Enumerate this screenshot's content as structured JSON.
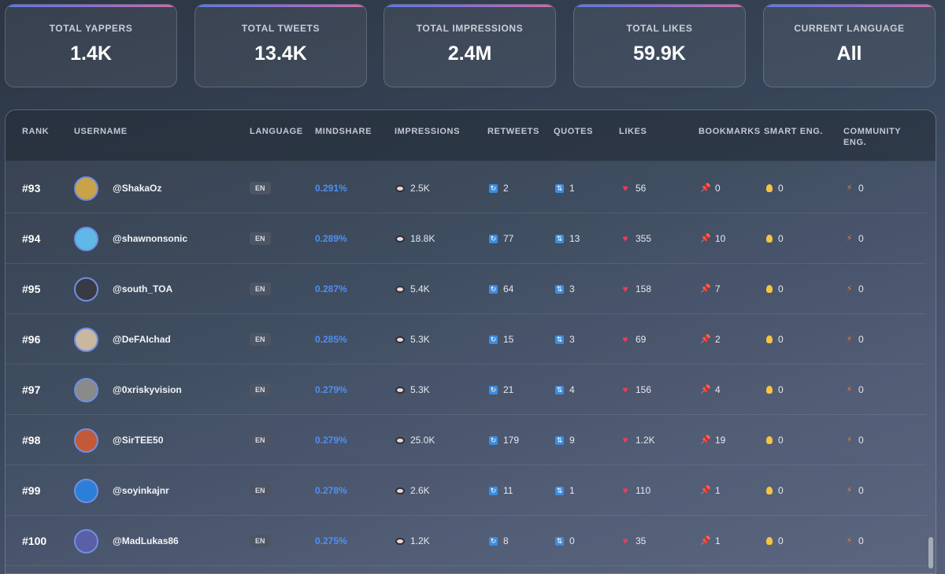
{
  "stats": [
    {
      "label": "TOTAL YAPPERS",
      "value": "1.4K"
    },
    {
      "label": "TOTAL TWEETS",
      "value": "13.4K"
    },
    {
      "label": "TOTAL IMPRESSIONS",
      "value": "2.4M"
    },
    {
      "label": "TOTAL LIKES",
      "value": "59.9K"
    },
    {
      "label": "CURRENT LANGUAGE",
      "value": "All"
    }
  ],
  "table": {
    "headers": {
      "rank": "RANK",
      "username": "USERNAME",
      "language": "LANGUAGE",
      "mindshare": "MINDSHARE",
      "impressions": "IMPRESSIONS",
      "retweets": "RETWEETS",
      "quotes": "QUOTES",
      "likes": "LIKES",
      "bookmarks": "BOOKMARKS",
      "smart_eng": "SMART ENG.",
      "community_eng_1": "COMMUNITY",
      "community_eng_2": "ENG."
    },
    "rows": [
      {
        "rank": "#93",
        "username": "@ShakaOz",
        "language": "EN",
        "mindshare": "0.291%",
        "impressions": "2.5K",
        "retweets": "2",
        "quotes": "1",
        "likes": "56",
        "bookmarks": "0",
        "smart_eng": "0",
        "community_eng": "0",
        "avatar_color": "#c9a24a"
      },
      {
        "rank": "#94",
        "username": "@shawnonsonic",
        "language": "EN",
        "mindshare": "0.289%",
        "impressions": "18.8K",
        "retweets": "77",
        "quotes": "13",
        "likes": "355",
        "bookmarks": "10",
        "smart_eng": "0",
        "community_eng": "0",
        "avatar_color": "#5fb8e8"
      },
      {
        "rank": "#95",
        "username": "@south_TOA",
        "language": "EN",
        "mindshare": "0.287%",
        "impressions": "5.4K",
        "retweets": "64",
        "quotes": "3",
        "likes": "158",
        "bookmarks": "7",
        "smart_eng": "0",
        "community_eng": "0",
        "avatar_color": "#3a3a44"
      },
      {
        "rank": "#96",
        "username": "@DeFAIchad",
        "language": "EN",
        "mindshare": "0.285%",
        "impressions": "5.3K",
        "retweets": "15",
        "quotes": "3",
        "likes": "69",
        "bookmarks": "2",
        "smart_eng": "0",
        "community_eng": "0",
        "avatar_color": "#c8b8a0"
      },
      {
        "rank": "#97",
        "username": "@0xriskyvision",
        "language": "EN",
        "mindshare": "0.279%",
        "impressions": "5.3K",
        "retweets": "21",
        "quotes": "4",
        "likes": "156",
        "bookmarks": "4",
        "smart_eng": "0",
        "community_eng": "0",
        "avatar_color": "#8a8a8a"
      },
      {
        "rank": "#98",
        "username": "@SirTEE50",
        "language": "EN",
        "mindshare": "0.279%",
        "impressions": "25.0K",
        "retweets": "179",
        "quotes": "9",
        "likes": "1.2K",
        "bookmarks": "19",
        "smart_eng": "0",
        "community_eng": "0",
        "avatar_color": "#c25a3a"
      },
      {
        "rank": "#99",
        "username": "@soyinkajnr",
        "language": "EN",
        "mindshare": "0.278%",
        "impressions": "2.6K",
        "retweets": "11",
        "quotes": "1",
        "likes": "110",
        "bookmarks": "1",
        "smart_eng": "0",
        "community_eng": "0",
        "avatar_color": "#2b7fd8"
      },
      {
        "rank": "#100",
        "username": "@MadLukas86",
        "language": "EN",
        "mindshare": "0.275%",
        "impressions": "1.2K",
        "retweets": "8",
        "quotes": "0",
        "likes": "35",
        "bookmarks": "1",
        "smart_eng": "0",
        "community_eng": "0",
        "avatar_color": "#5a5fa8"
      }
    ]
  },
  "icons": {
    "impressions": "eye-icon",
    "retweets": "retweet-icon",
    "quotes": "quote-icon",
    "likes": "heart-icon",
    "bookmarks": "pin-icon",
    "smart_eng": "lightbulb-icon",
    "community_eng": "lightning-icon"
  },
  "colors": {
    "mindshare": "#4f8ff0",
    "accent_gradient": [
      "#5b7be8",
      "#d06aa8"
    ]
  }
}
